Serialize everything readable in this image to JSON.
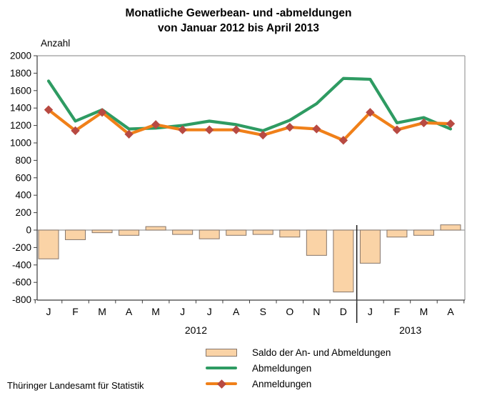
{
  "title": {
    "line1": "Monatliche Gewerbean- und -abmeldungen",
    "line2": "von Januar 2012 bis April 2013"
  },
  "axis": {
    "y_label": "Anzahl"
  },
  "legend": {
    "items": [
      {
        "label": "Saldo der An- und Abmeldungen",
        "swatch": "bar"
      },
      {
        "label": "Abmeldungen",
        "swatch": "line"
      },
      {
        "label": "Anmeldungen",
        "swatch": "line-with-diamond-marker"
      }
    ]
  },
  "footer": {
    "source": "Thüringer Landesamt für Statistik"
  },
  "colors": {
    "saldo_fill": "#FAD3A6",
    "saldo_border": "#85756A",
    "abmeldungen": "#2E9B62",
    "anmeldungen": "#F08019",
    "marker": "#B84A42",
    "axis_dark": "#3C3C3C",
    "grid_gray": "#9B9B9B",
    "separator": "#1A1A1A"
  },
  "chart_data": {
    "type": "bar",
    "subtype": "combo bar + line",
    "title": "Monatliche Gewerbean- und -abmeldungen von Januar 2012 bis April 2013",
    "xlabel": "",
    "ylabel": "Anzahl",
    "categories": [
      "J",
      "F",
      "M",
      "A",
      "M",
      "J",
      "J",
      "A",
      "S",
      "O",
      "N",
      "D",
      "J",
      "F",
      "M",
      "A"
    ],
    "year_groups": [
      {
        "label": "2012",
        "months": 12
      },
      {
        "label": "2013",
        "months": 4
      }
    ],
    "ylim": [
      -800,
      2000
    ],
    "ytick_step": 200,
    "grid": "zero line only",
    "legend_position": "bottom",
    "separator_between": "D 2012 and J 2013",
    "series": [
      {
        "name": "Saldo der An- und Abmeldungen",
        "type": "bar",
        "values": [
          -330,
          -110,
          -30,
          -60,
          40,
          -50,
          -100,
          -60,
          -50,
          -80,
          -290,
          -710,
          -380,
          -80,
          -60,
          60
        ]
      },
      {
        "name": "Abmeldungen",
        "type": "line",
        "values": [
          1710,
          1250,
          1380,
          1160,
          1170,
          1200,
          1250,
          1210,
          1140,
          1260,
          1450,
          1740,
          1730,
          1230,
          1290,
          1160
        ]
      },
      {
        "name": "Anmeldungen",
        "type": "line",
        "marker": "diamond",
        "values": [
          1380,
          1140,
          1350,
          1100,
          1210,
          1150,
          1150,
          1150,
          1090,
          1180,
          1160,
          1030,
          1350,
          1150,
          1230,
          1220
        ]
      }
    ]
  }
}
